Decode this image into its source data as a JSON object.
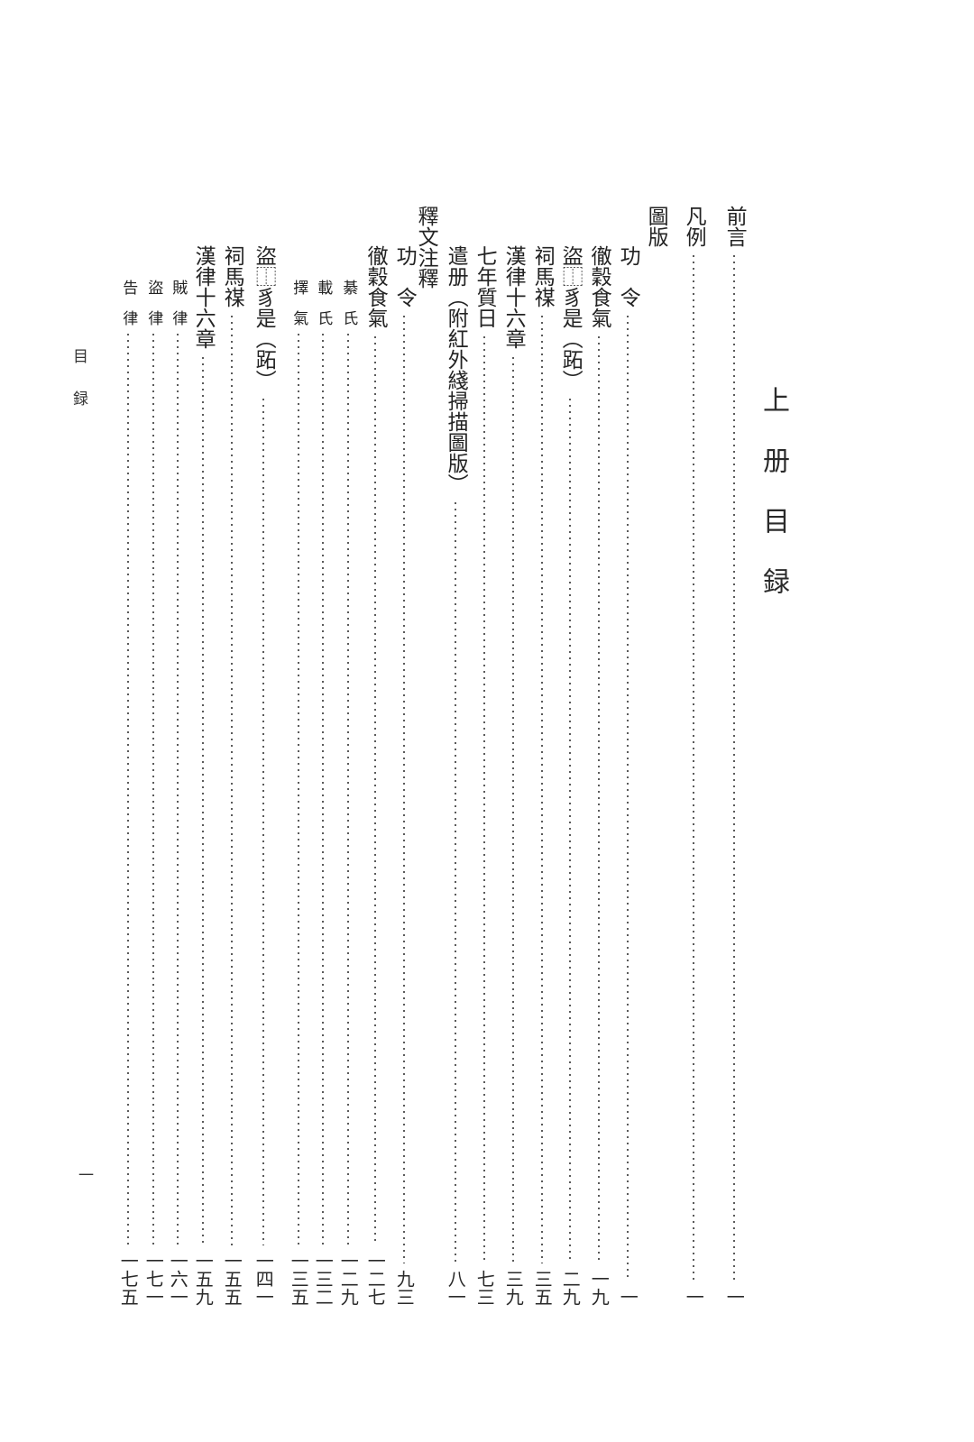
{
  "page": {
    "volume_title": "上册目録",
    "running_header": "目録",
    "folio_number": "一"
  },
  "toc": {
    "entries": [
      {
        "title": "前言",
        "page": "一",
        "level": 0,
        "spaced": false
      },
      {
        "title": "凡例",
        "page": "一",
        "level": 0,
        "spaced": false
      },
      {
        "title": "圖版",
        "page": "",
        "level": 0,
        "spaced": false,
        "section_header": true
      },
      {
        "title": "功令",
        "page": "一",
        "level": 1,
        "spaced": true
      },
      {
        "title": "徹穀食氣",
        "page": "一九",
        "level": 1,
        "spaced": false
      },
      {
        "title": "盜⿰豸是（跖）",
        "page": "二九",
        "level": 1,
        "spaced": false
      },
      {
        "title": "祠馬禖",
        "page": "三五",
        "level": 1,
        "spaced": false
      },
      {
        "title": "漢律十六章",
        "page": "三九",
        "level": 1,
        "spaced": false
      },
      {
        "title": "七年質日",
        "page": "七三",
        "level": 1,
        "spaced": false
      },
      {
        "title": "遣册（附紅外綫掃描圖版）",
        "page": "八一",
        "level": 1,
        "spaced": false,
        "note": "遣册 followed by parenthetical 附紅外綫掃描圖版"
      },
      {
        "title": "釋文注釋",
        "page": "",
        "level": 0,
        "spaced": false,
        "section_header": true
      },
      {
        "title": "功令",
        "page": "九三",
        "level": 1,
        "spaced": true
      },
      {
        "title": "徹穀食氣",
        "page": "一二七",
        "level": 1,
        "spaced": false
      },
      {
        "title": "綦氏",
        "page": "一二九",
        "level": 2,
        "spaced": true
      },
      {
        "title": "載氏",
        "page": "一三二",
        "level": 2,
        "spaced": true
      },
      {
        "title": "擇氣",
        "page": "一三五",
        "level": 2,
        "spaced": true
      },
      {
        "title": "盜⿰豸是（跖）",
        "page": "一四一",
        "level": 1,
        "spaced": false
      },
      {
        "title": "祠馬禖",
        "page": "一五五",
        "level": 1,
        "spaced": false
      },
      {
        "title": "漢律十六章",
        "page": "一五九",
        "level": 1,
        "spaced": false
      },
      {
        "title": "賊律",
        "page": "一六一",
        "level": 2,
        "spaced": true
      },
      {
        "title": "盜律",
        "page": "一七一",
        "level": 2,
        "spaced": true
      },
      {
        "title": "告律",
        "page": "一七五",
        "level": 2,
        "spaced": true
      }
    ],
    "colors": {
      "text": "#232323",
      "leader_dots": "#5a5a5a",
      "paper": "#ffffff"
    }
  }
}
